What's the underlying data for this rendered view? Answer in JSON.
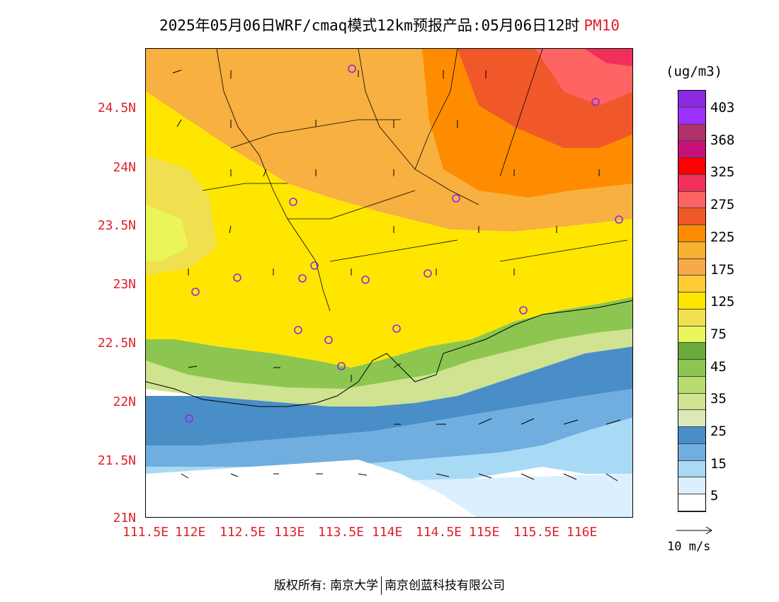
{
  "title": {
    "main": "2025年05月06日WRF/cmaq模式12km预报产品:05月06日12时",
    "pollutant": "PM10"
  },
  "axes": {
    "y_ticks": [
      "24.5N",
      "24N",
      "23.5N",
      "23N",
      "22.5N",
      "22N",
      "21.5N",
      "21N"
    ],
    "x_ticks": [
      "111.5E",
      "112E",
      "112.5E",
      "113E",
      "113.5E",
      "114E",
      "114.5E",
      "115E",
      "115.5E",
      "116E"
    ]
  },
  "colorbar": {
    "unit": "(ug/m3)",
    "labels": [
      "403",
      "368",
      "325",
      "275",
      "225",
      "175",
      "125",
      "75",
      "45",
      "35",
      "25",
      "15",
      "5"
    ],
    "colors": [
      "#8a2be2",
      "#9b30ff",
      "#b0306a",
      "#c8107a",
      "#ff0000",
      "#f0305a",
      "#ff6464",
      "#f0582a",
      "#ff8c00",
      "#f8b030",
      "#f8aa4a",
      "#ffcc33",
      "#ffe600",
      "#f0e050",
      "#eaf55a",
      "#6aaa3a",
      "#8cc650",
      "#b8dc70",
      "#cfe390",
      "#dde8b8",
      "#4a8ec8",
      "#70aee0",
      "#a8daf5",
      "#dcefff",
      "#ffffff"
    ]
  },
  "wind_reference": {
    "label": "10 m/s"
  },
  "footer": {
    "left": "版权所有: 南京大学",
    "right": "南京创蓝科技有限公司"
  }
}
